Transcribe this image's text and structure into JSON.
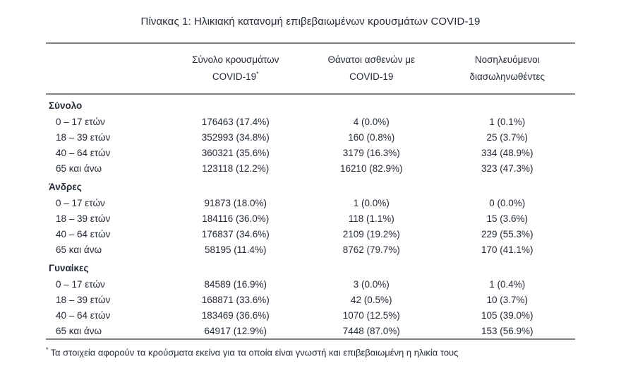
{
  "title": "Πίνακας 1: Ηλικιακή κατανομή επιβεβαιωμένων κρουσμάτων COVID-19",
  "table": {
    "columns": [
      {
        "line1": "Σύνολο κρουσμάτων",
        "line2": "COVID-19",
        "sup": "*"
      },
      {
        "line1": "Θάνατοι ασθενών με",
        "line2": "COVID-19",
        "sup": ""
      },
      {
        "line1": "Νοσηλευόμενοι",
        "line2": "διασωληνωθέντες",
        "sup": ""
      }
    ],
    "sections": [
      {
        "label": "Σύνολο",
        "rows": [
          {
            "label": "0 – 17 ετών",
            "cases": "176463 (17.4%)",
            "deaths": "4 (0.0%)",
            "intubated": "1 (0.1%)"
          },
          {
            "label": "18 – 39 ετών",
            "cases": "352993 (34.8%)",
            "deaths": "160 (0.8%)",
            "intubated": "25 (3.7%)"
          },
          {
            "label": "40 – 64 ετών",
            "cases": "360321 (35.6%)",
            "deaths": "3179 (16.3%)",
            "intubated": "334 (48.9%)"
          },
          {
            "label": "65 και άνω",
            "cases": "123118 (12.2%)",
            "deaths": "16210 (82.9%)",
            "intubated": "323 (47.3%)"
          }
        ]
      },
      {
        "label": "Άνδρες",
        "rows": [
          {
            "label": "0 – 17 ετών",
            "cases": "91873 (18.0%)",
            "deaths": "1 (0.0%)",
            "intubated": "0 (0.0%)"
          },
          {
            "label": "18 – 39 ετών",
            "cases": "184116 (36.0%)",
            "deaths": "118 (1.1%)",
            "intubated": "15 (3.6%)"
          },
          {
            "label": "40 – 64 ετών",
            "cases": "176837 (34.6%)",
            "deaths": "2109 (19.2%)",
            "intubated": "229 (55.3%)"
          },
          {
            "label": "65 και άνω",
            "cases": "58195 (11.4%)",
            "deaths": "8762 (79.7%)",
            "intubated": "170 (41.1%)"
          }
        ]
      },
      {
        "label": "Γυναίκες",
        "rows": [
          {
            "label": "0 – 17 ετών",
            "cases": "84589 (16.9%)",
            "deaths": "3 (0.0%)",
            "intubated": "1 (0.4%)"
          },
          {
            "label": "18 – 39 ετών",
            "cases": "168871 (33.6%)",
            "deaths": "42 (0.5%)",
            "intubated": "10 (3.7%)"
          },
          {
            "label": "40 – 64 ετών",
            "cases": "183469 (36.6%)",
            "deaths": "1070 (12.5%)",
            "intubated": "105 (39.0%)"
          },
          {
            "label": "65 και άνω",
            "cases": "64917 (12.9%)",
            "deaths": "7448 (87.0%)",
            "intubated": "153 (56.9%)"
          }
        ]
      }
    ]
  },
  "footnote": {
    "marker": "*",
    "text": "Τα στοιχεία αφορούν τα κρούσματα εκείνα για τα οποία είναι γνωστή και επιβεβαιωμένη η ηλικία τους"
  }
}
